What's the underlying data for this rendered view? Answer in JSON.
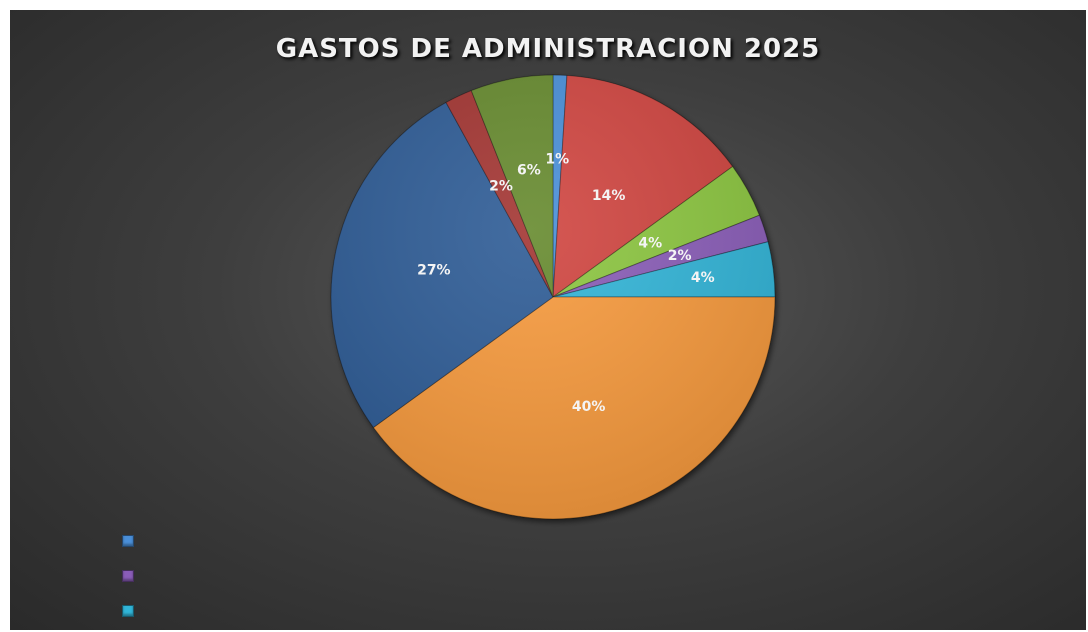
{
  "chart_data": {
    "type": "pie",
    "title": "GASTOS DE ADMINISTRACION 2025",
    "slices": [
      {
        "value": 1,
        "label": "1%",
        "color": "#4a8fd8"
      },
      {
        "value": 14,
        "label": "14%",
        "color": "#d0453f"
      },
      {
        "value": 4,
        "label": "4%",
        "color": "#8cc63f"
      },
      {
        "value": 2,
        "label": "2%",
        "color": "#8a5db8"
      },
      {
        "value": 4,
        "label": "4%",
        "color": "#31b5d8"
      },
      {
        "value": 40,
        "label": "40%",
        "color": "#f79a3c"
      },
      {
        "value": 27,
        "label": "27%",
        "color": "#2f5c96"
      },
      {
        "value": 2,
        "label": "2%",
        "color": "#a33433"
      },
      {
        "value": 6,
        "label": "6%",
        "color": "#668a2e"
      }
    ],
    "legend": {
      "placement": "bottom-left",
      "colors": [
        "#4a8fd8",
        "#8a5db8",
        "#31b5d8"
      ]
    }
  }
}
